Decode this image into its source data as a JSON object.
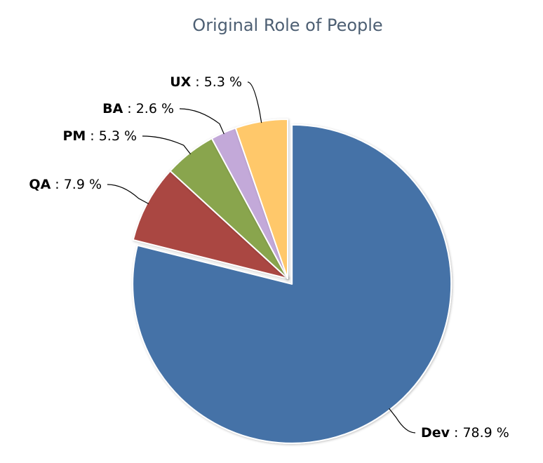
{
  "chart_data": {
    "type": "pie",
    "title": "Original Role of People",
    "categories": [
      "Dev",
      "QA",
      "PM",
      "BA",
      "UX"
    ],
    "values": [
      78.9,
      7.9,
      5.3,
      2.6,
      5.3
    ],
    "value_labels": [
      "78.9 %",
      "7.9 %",
      "5.3 %",
      "2.6 %",
      "5.3 %"
    ],
    "label_separator": ":",
    "colors": [
      "#4572a7",
      "#aa4643",
      "#89a54e",
      "#c3a9d9",
      "#ffc86b"
    ]
  }
}
